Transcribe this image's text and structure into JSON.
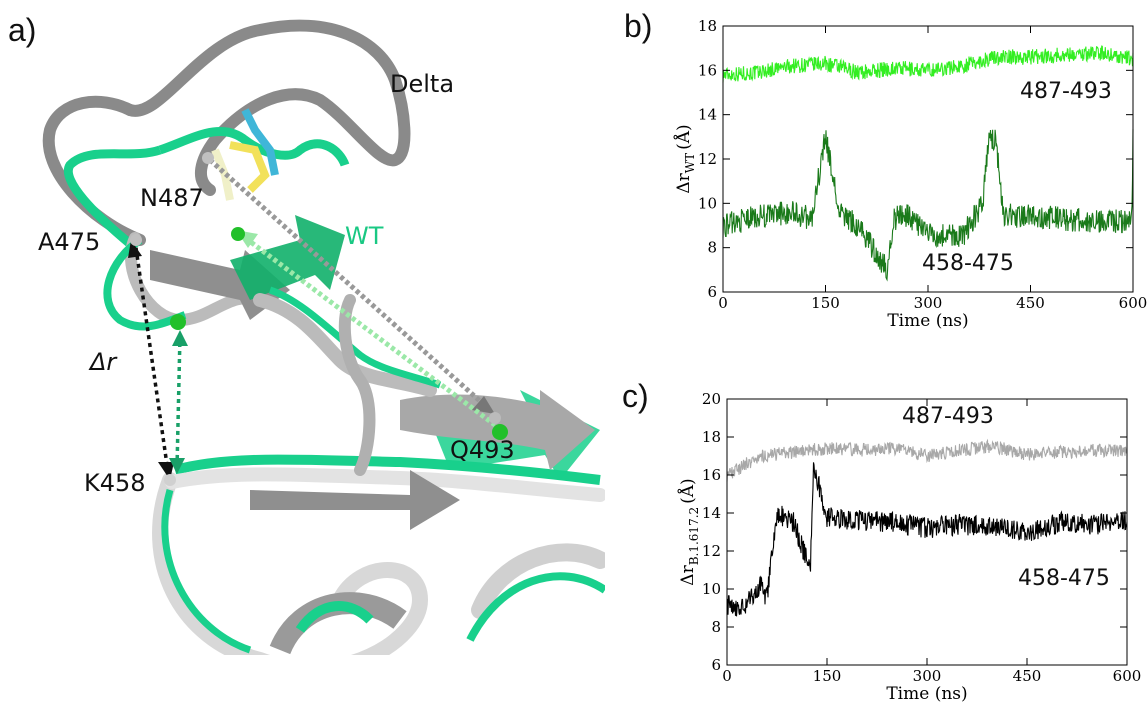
{
  "panel_a": {
    "label": "a)",
    "labels": {
      "delta": "Delta",
      "wt": "WT",
      "n487": "N487",
      "a475": "A475",
      "k458": "K458",
      "q493": "Q493",
      "delta_r": "Δr"
    }
  },
  "panel_b": {
    "label": "b)"
  },
  "panel_c": {
    "label": "c)"
  },
  "colors": {
    "wt_green": "#19d08c",
    "delta_gray": "#8a8a8a",
    "b_487_493": "#33ee22",
    "b_458_475": "#1a7a1a",
    "c_487_493": "#a8a8a8",
    "c_458_475": "#000000"
  },
  "chart_data": [
    {
      "type": "line",
      "ylabel_main": "Δr",
      "ylabel_sub": "WT",
      "ylabel_unit": "(Å)",
      "xlabel": "Time (ns)",
      "xlim": [
        0,
        600
      ],
      "ylim": [
        6,
        18
      ],
      "xticks": [
        0,
        150,
        300,
        450,
        600
      ],
      "yticks": [
        6,
        8,
        10,
        12,
        14,
        16,
        18
      ],
      "series": [
        {
          "name": "487-493",
          "color": "#33ee22",
          "x": [
            0,
            50,
            100,
            150,
            200,
            250,
            300,
            350,
            400,
            450,
            500,
            550,
            600
          ],
          "y": [
            15.8,
            15.9,
            16.2,
            16.3,
            15.9,
            16.1,
            16.0,
            16.2,
            16.6,
            16.6,
            16.7,
            16.8,
            16.5
          ]
        },
        {
          "name": "458-475",
          "color": "#1a7a1a",
          "x": [
            0,
            50,
            100,
            130,
            150,
            170,
            200,
            240,
            250,
            270,
            300,
            350,
            380,
            390,
            400,
            410,
            450,
            500,
            550,
            598,
            600
          ],
          "y": [
            9.0,
            9.4,
            9.6,
            9.3,
            13.0,
            9.6,
            8.9,
            7.0,
            9.3,
            9.5,
            8.6,
            8.5,
            10.0,
            13.0,
            12.8,
            9.5,
            9.4,
            9.3,
            9.2,
            9.2,
            13.0
          ]
        }
      ]
    },
    {
      "type": "line",
      "ylabel_main": "Δr",
      "ylabel_sub": "B.1.617.2",
      "ylabel_unit": "(Å)",
      "xlabel": "Time (ns)",
      "xlim": [
        0,
        600
      ],
      "ylim": [
        6,
        20
      ],
      "xticks": [
        0,
        150,
        300,
        450,
        600
      ],
      "yticks": [
        6,
        8,
        10,
        12,
        14,
        16,
        18,
        20
      ],
      "series": [
        {
          "name": "487-493",
          "color": "#a8a8a8",
          "x": [
            0,
            50,
            100,
            150,
            200,
            250,
            300,
            350,
            400,
            450,
            500,
            550,
            600
          ],
          "y": [
            16.0,
            17.0,
            17.2,
            17.4,
            17.3,
            17.4,
            17.0,
            17.3,
            17.5,
            17.1,
            17.2,
            17.3,
            17.3
          ]
        },
        {
          "name": "458-475",
          "color": "#000000",
          "x": [
            0,
            25,
            50,
            60,
            75,
            100,
            125,
            130,
            150,
            200,
            250,
            300,
            350,
            400,
            450,
            500,
            550,
            600
          ],
          "y": [
            9.2,
            9.0,
            10.2,
            9.5,
            14.0,
            13.5,
            11.0,
            16.5,
            13.8,
            13.6,
            13.5,
            13.2,
            13.4,
            13.3,
            13.0,
            13.5,
            13.4,
            13.6
          ]
        }
      ]
    }
  ]
}
